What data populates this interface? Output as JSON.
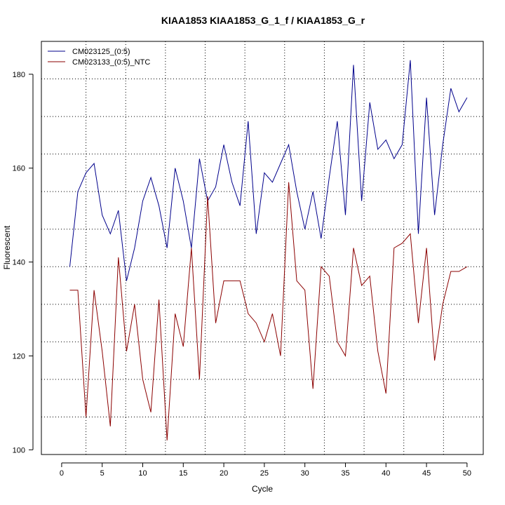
{
  "chart_data": {
    "type": "line",
    "title": "KIAA1853  KIAA1853_G_1_f / KIAA1853_G_r",
    "xlabel": "Cycle",
    "ylabel": "Fluorescent",
    "xlim": [
      -2.5,
      52
    ],
    "ylim": [
      99,
      187
    ],
    "xticks": [
      0,
      5,
      10,
      15,
      20,
      25,
      30,
      35,
      40,
      45,
      50
    ],
    "yticks": [
      100,
      120,
      140,
      160,
      180
    ],
    "v_dotted_lines": [
      3,
      7.9,
      12.8,
      17.7,
      22.6,
      27.5,
      32.4,
      37.3,
      42.2,
      47.1
    ],
    "h_dotted_lines": [
      107,
      115,
      123,
      131,
      139,
      147,
      155,
      163,
      171,
      179,
      187
    ],
    "legend_position": "top-left",
    "series": [
      {
        "name": "CM023125_(0:5)",
        "color": "#00008b",
        "x": [
          1,
          2,
          3,
          4,
          5,
          6,
          7,
          8,
          9,
          10,
          11,
          12,
          13,
          14,
          15,
          16,
          17,
          18,
          19,
          20,
          21,
          22,
          23,
          24,
          25,
          26,
          27,
          28,
          29,
          30,
          31,
          32,
          33,
          34,
          35,
          36,
          37,
          38,
          39,
          40,
          41,
          42,
          43,
          44,
          45,
          46,
          47,
          48,
          49,
          50
        ],
        "y": [
          139,
          155,
          159,
          161,
          150,
          146,
          151,
          136,
          143,
          153,
          158,
          152,
          143,
          160,
          153,
          143,
          162,
          153,
          156,
          165,
          157,
          152,
          170,
          146,
          159,
          157,
          161,
          165,
          155,
          147,
          155,
          145,
          158,
          170,
          150,
          182,
          153,
          174,
          164,
          166,
          162,
          165,
          183,
          146,
          175,
          150,
          165,
          177,
          172,
          175
        ]
      },
      {
        "name": "CM023133_(0:5)_NTC",
        "color": "#8b0000",
        "x": [
          1,
          2,
          3,
          4,
          5,
          6,
          7,
          8,
          9,
          10,
          11,
          12,
          13,
          14,
          15,
          16,
          17,
          18,
          19,
          20,
          21,
          22,
          23,
          24,
          25,
          26,
          27,
          28,
          29,
          30,
          31,
          32,
          33,
          34,
          35,
          36,
          37,
          38,
          39,
          40,
          41,
          42,
          43,
          44,
          45,
          46,
          47,
          48,
          49,
          50
        ],
        "y": [
          134,
          134,
          107,
          134,
          121,
          105,
          141,
          121,
          131,
          115,
          108,
          132,
          102,
          129,
          122,
          143,
          115,
          154,
          127,
          136,
          136,
          136,
          129,
          127,
          123,
          129,
          120,
          157,
          136,
          134,
          113,
          139,
          137,
          123,
          120,
          143,
          135,
          137,
          121,
          112,
          143,
          144,
          146,
          127,
          143,
          119,
          131,
          138,
          138,
          139
        ]
      }
    ]
  }
}
